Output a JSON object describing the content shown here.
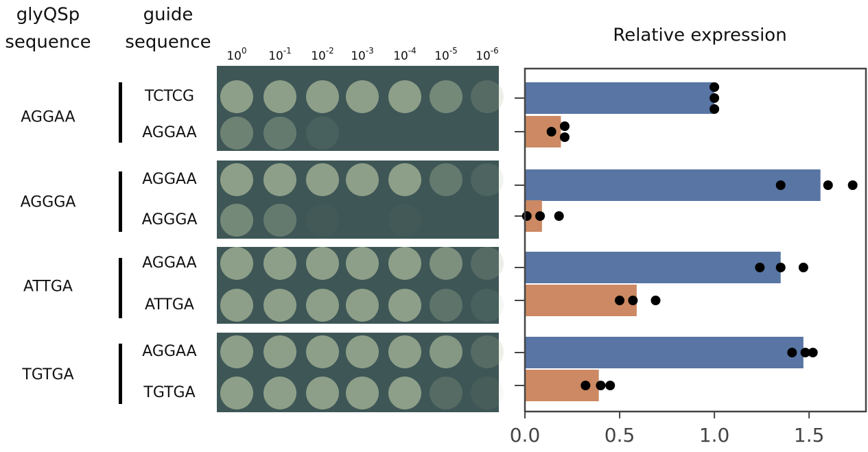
{
  "headers": {
    "promoter": [
      "glyQSp",
      "sequence"
    ],
    "guide": [
      "guide",
      "sequence"
    ]
  },
  "dilutions": [
    {
      "base": "10",
      "exponent": "0"
    },
    {
      "base": "10",
      "exponent": "-1"
    },
    {
      "base": "10",
      "exponent": "-2"
    },
    {
      "base": "10",
      "exponent": "-3"
    },
    {
      "base": "10",
      "exponent": "-4"
    },
    {
      "base": "10",
      "exponent": "-5"
    },
    {
      "base": "10",
      "exponent": "-6"
    }
  ],
  "groups": [
    {
      "promoter": "AGGAA",
      "guides": [
        "TCTCG",
        "AGGAA"
      ]
    },
    {
      "promoter": "AGGGA",
      "guides": [
        "AGGAA",
        "AGGGA"
      ]
    },
    {
      "promoter": "ATTGA",
      "guides": [
        "AGGAA",
        "ATTGA"
      ]
    },
    {
      "promoter": "TGTGA",
      "guides": [
        "AGGAA",
        "TGTGA"
      ]
    }
  ],
  "chart_data": {
    "type": "barh",
    "title": "Relative expression",
    "values": [
      1.0,
      0.19,
      1.56,
      0.09,
      1.35,
      0.59,
      1.47,
      0.39
    ],
    "colors": [
      "#5875a4",
      "#cc8963",
      "#5875a4",
      "#cc8963",
      "#5875a4",
      "#cc8963",
      "#5875a4",
      "#cc8963"
    ],
    "points": [
      [
        1.0,
        1.0,
        1.0
      ],
      [
        0.14,
        0.21,
        0.21
      ],
      [
        1.35,
        1.6,
        1.73
      ],
      [
        0.01,
        0.08,
        0.18
      ],
      [
        1.24,
        1.35,
        1.47
      ],
      [
        0.5,
        0.57,
        0.69
      ],
      [
        1.41,
        1.48,
        1.52
      ],
      [
        0.32,
        0.4,
        0.45
      ]
    ],
    "xlim": [
      0,
      1.8
    ],
    "xticks": [
      {
        "value": 0,
        "label": "0.0"
      },
      {
        "value": 0.5,
        "label": "0.5"
      },
      {
        "value": 1,
        "label": "1.0"
      },
      {
        "value": 1.5,
        "label": "1.5"
      }
    ]
  }
}
